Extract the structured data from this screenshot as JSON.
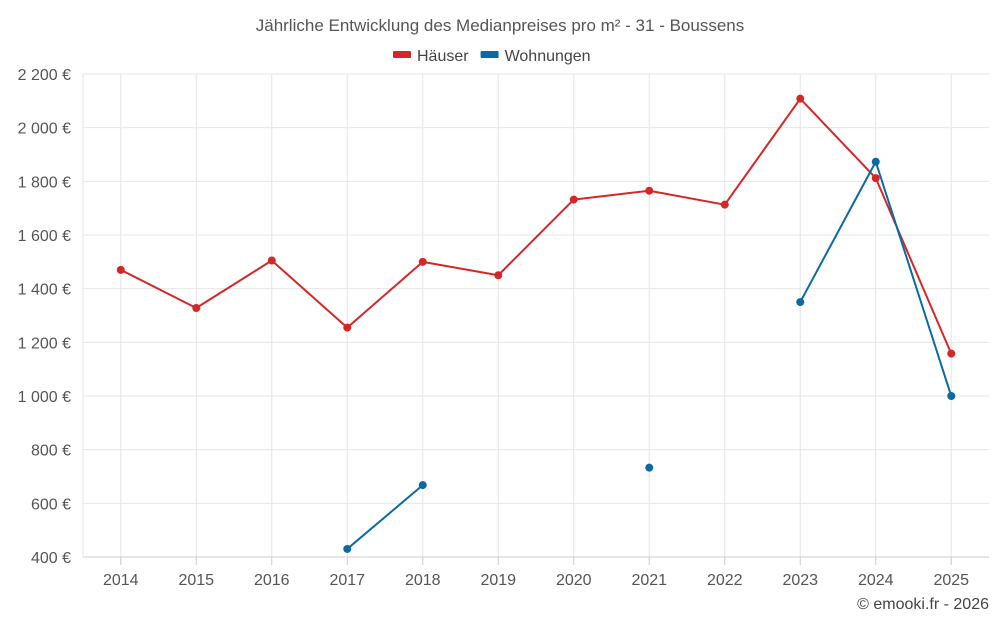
{
  "chart_data": {
    "type": "line",
    "title": "Jährliche Entwicklung des Medianpreises pro m² - 31 - Boussens",
    "xlabel": "",
    "ylabel": "",
    "categories": [
      "2014",
      "2015",
      "2016",
      "2017",
      "2018",
      "2019",
      "2020",
      "2021",
      "2022",
      "2023",
      "2024",
      "2025"
    ],
    "ylim": [
      400,
      2200
    ],
    "yticks": [
      400,
      600,
      800,
      1000,
      1200,
      1400,
      1600,
      1800,
      2000,
      2200
    ],
    "ytick_labels": [
      "400 €",
      "600 €",
      "800 €",
      "1 000 €",
      "1 200 €",
      "1 400 €",
      "1 600 €",
      "1 800 €",
      "2 000 €",
      "2 200 €"
    ],
    "grid": true,
    "legend_position": "top-center",
    "series": [
      {
        "name": "Häuser",
        "color": "#d62728",
        "values": [
          1470,
          1328,
          1505,
          1255,
          1500,
          1450,
          1732,
          1765,
          1713,
          2108,
          1812,
          1158
        ]
      },
      {
        "name": "Wohnungen",
        "color": "#0a6aa1",
        "values": [
          null,
          null,
          null,
          430,
          668,
          null,
          null,
          733,
          null,
          1350,
          1873,
          1000
        ]
      }
    ]
  },
  "credit": "© emooki.fr - 2026"
}
